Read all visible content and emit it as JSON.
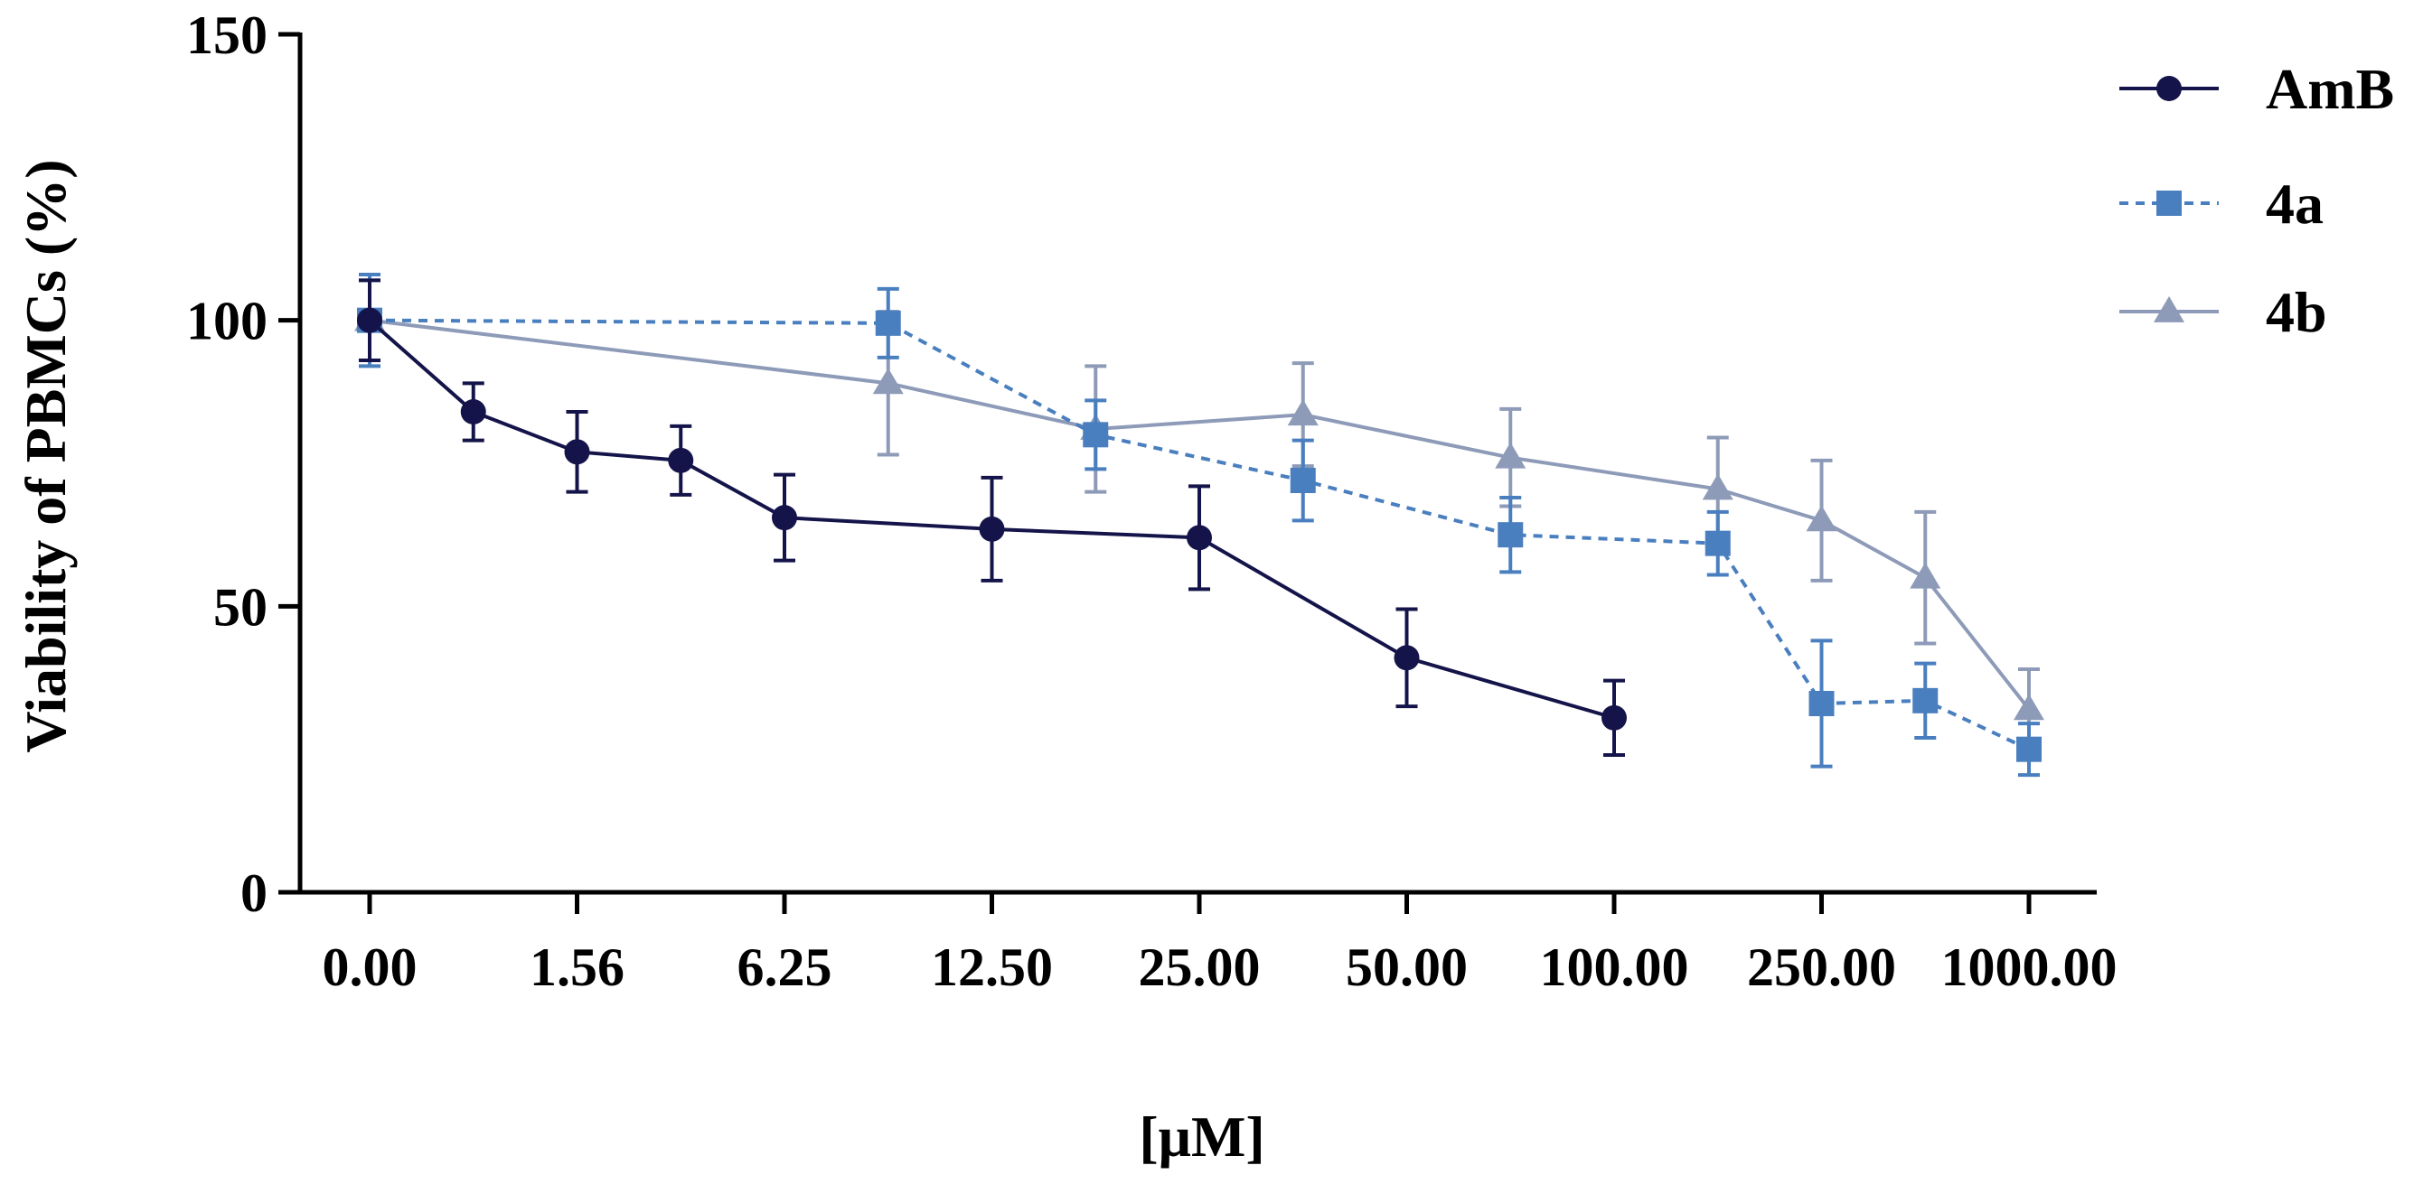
{
  "chart_data": {
    "type": "line",
    "title": "",
    "xlabel": "[μM]",
    "ylabel": "Viability of PBMCs (%)",
    "ylim": [
      0,
      150
    ],
    "xlim": [
      0,
      8
    ],
    "yticks": [
      0,
      50,
      100,
      150
    ],
    "xtick_positions": [
      0,
      1,
      2,
      3,
      4,
      5,
      6,
      7,
      8
    ],
    "xtick_labels": [
      "0.00",
      "1.56",
      "6.25",
      "12.50",
      "25.00",
      "50.00",
      "100.00",
      "250.00",
      "1000.00"
    ],
    "grid": false,
    "legend_position": "top-right",
    "series": [
      {
        "name": "AmB",
        "color": "#14144a",
        "marker": "circle",
        "dash": "solid",
        "x": [
          0,
          0.5,
          1,
          1.5,
          2,
          3,
          4,
          5,
          6
        ],
        "y": [
          100,
          84,
          77,
          75.5,
          65.5,
          63.5,
          62,
          41,
          30.5
        ],
        "err": [
          7,
          5,
          7,
          6,
          7.5,
          9,
          9,
          8.5,
          6.5
        ]
      },
      {
        "name": "4a",
        "color": "#4a7fbf",
        "marker": "square",
        "dash": "dashed",
        "x": [
          0,
          2.5,
          3.5,
          4.5,
          5.5,
          6.5,
          7,
          7.5,
          8
        ],
        "y": [
          100,
          99.5,
          80,
          72,
          62.5,
          61,
          33,
          33.5,
          25
        ],
        "err": [
          8,
          6,
          6,
          7,
          6.5,
          5.5,
          11,
          6.5,
          4.5
        ]
      },
      {
        "name": "4b",
        "color": "#8e9bb8",
        "marker": "triangle",
        "dash": "solid",
        "x": [
          0,
          2.5,
          3.5,
          4.5,
          5.5,
          6.5,
          7,
          7.5,
          8
        ],
        "y": [
          100,
          89,
          81,
          83.5,
          76,
          70.5,
          65,
          55,
          32
        ],
        "err": [
          7,
          12.5,
          11,
          9,
          8.5,
          9,
          10.5,
          11.5,
          7
        ]
      }
    ]
  }
}
